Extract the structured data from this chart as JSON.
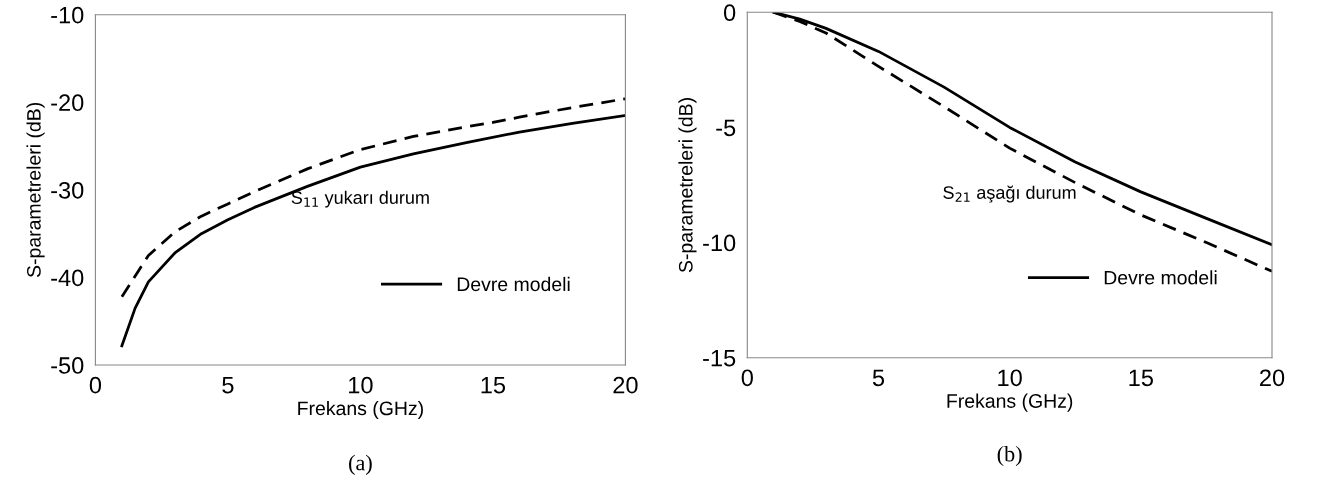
{
  "chart_data": [
    {
      "type": "line",
      "xlabel": "Frekans (GHz)",
      "ylabel": "S-parametreleri (dB)",
      "xlim": [
        0,
        20
      ],
      "xticks": [
        0,
        5,
        10,
        15,
        20
      ],
      "ylim": [
        -50,
        -10
      ],
      "yticks": [
        -50,
        -40,
        -30,
        -20,
        -10
      ],
      "grid": false,
      "legend": "bottom right",
      "marker": "none",
      "annotations": [
        "S$_{11}$ yukarı durum",
        "(a)"
      ],
      "series": [
        {
          "color": "#000000",
          "line_style": "dashed",
          "x": [
            1,
            2,
            3,
            4,
            5,
            6,
            8,
            10,
            12,
            14,
            15,
            16,
            18,
            20
          ],
          "values": [
            -42.2,
            -37.5,
            -34.8,
            -33.0,
            -31.6,
            -30.2,
            -27.6,
            -25.4,
            -23.9,
            -22.8,
            -22.3,
            -21.7,
            -20.6,
            -19.6
          ]
        },
        {
          "name": "Devre modeli",
          "color": "#000000",
          "line_style": "solid",
          "x": [
            1,
            1.5,
            2,
            3,
            4,
            5,
            6,
            8,
            10,
            12,
            14,
            16,
            18,
            20
          ],
          "values": [
            -47.8,
            -43.5,
            -40.5,
            -37.2,
            -35.0,
            -33.4,
            -32.0,
            -29.6,
            -27.4,
            -25.9,
            -24.6,
            -23.4,
            -22.4,
            -21.5
          ]
        }
      ]
    },
    {
      "type": "line",
      "xlabel": "Frekans (GHz)",
      "ylabel": "S-parametreleri (dB)",
      "xlim": [
        0,
        20
      ],
      "xticks": [
        0,
        5,
        10,
        15,
        20
      ],
      "ylim": [
        -15,
        0
      ],
      "yticks": [
        -15,
        -10,
        -5,
        0
      ],
      "grid": false,
      "legend": "bottom right",
      "marker": "none",
      "annotations": [
        "S$_{21}$ aşağı durum",
        "(b)"
      ],
      "series": [
        {
          "color": "#000000",
          "line_style": "dashed",
          "x": [
            1,
            2,
            3,
            5,
            7.5,
            10,
            12.5,
            15,
            17.5,
            20
          ],
          "values": [
            0,
            -0.4,
            -0.9,
            -2.35,
            -4.1,
            -5.9,
            -7.4,
            -8.8,
            -10.0,
            -11.25
          ]
        },
        {
          "name": "Devre modeli",
          "color": "#000000",
          "line_style": "solid",
          "x": [
            1,
            2,
            3,
            5,
            7.5,
            10,
            12.5,
            15,
            17.5,
            20
          ],
          "values": [
            0,
            -0.3,
            -0.7,
            -1.7,
            -3.25,
            -5.0,
            -6.5,
            -7.8,
            -8.95,
            -10.1
          ]
        }
      ]
    }
  ]
}
